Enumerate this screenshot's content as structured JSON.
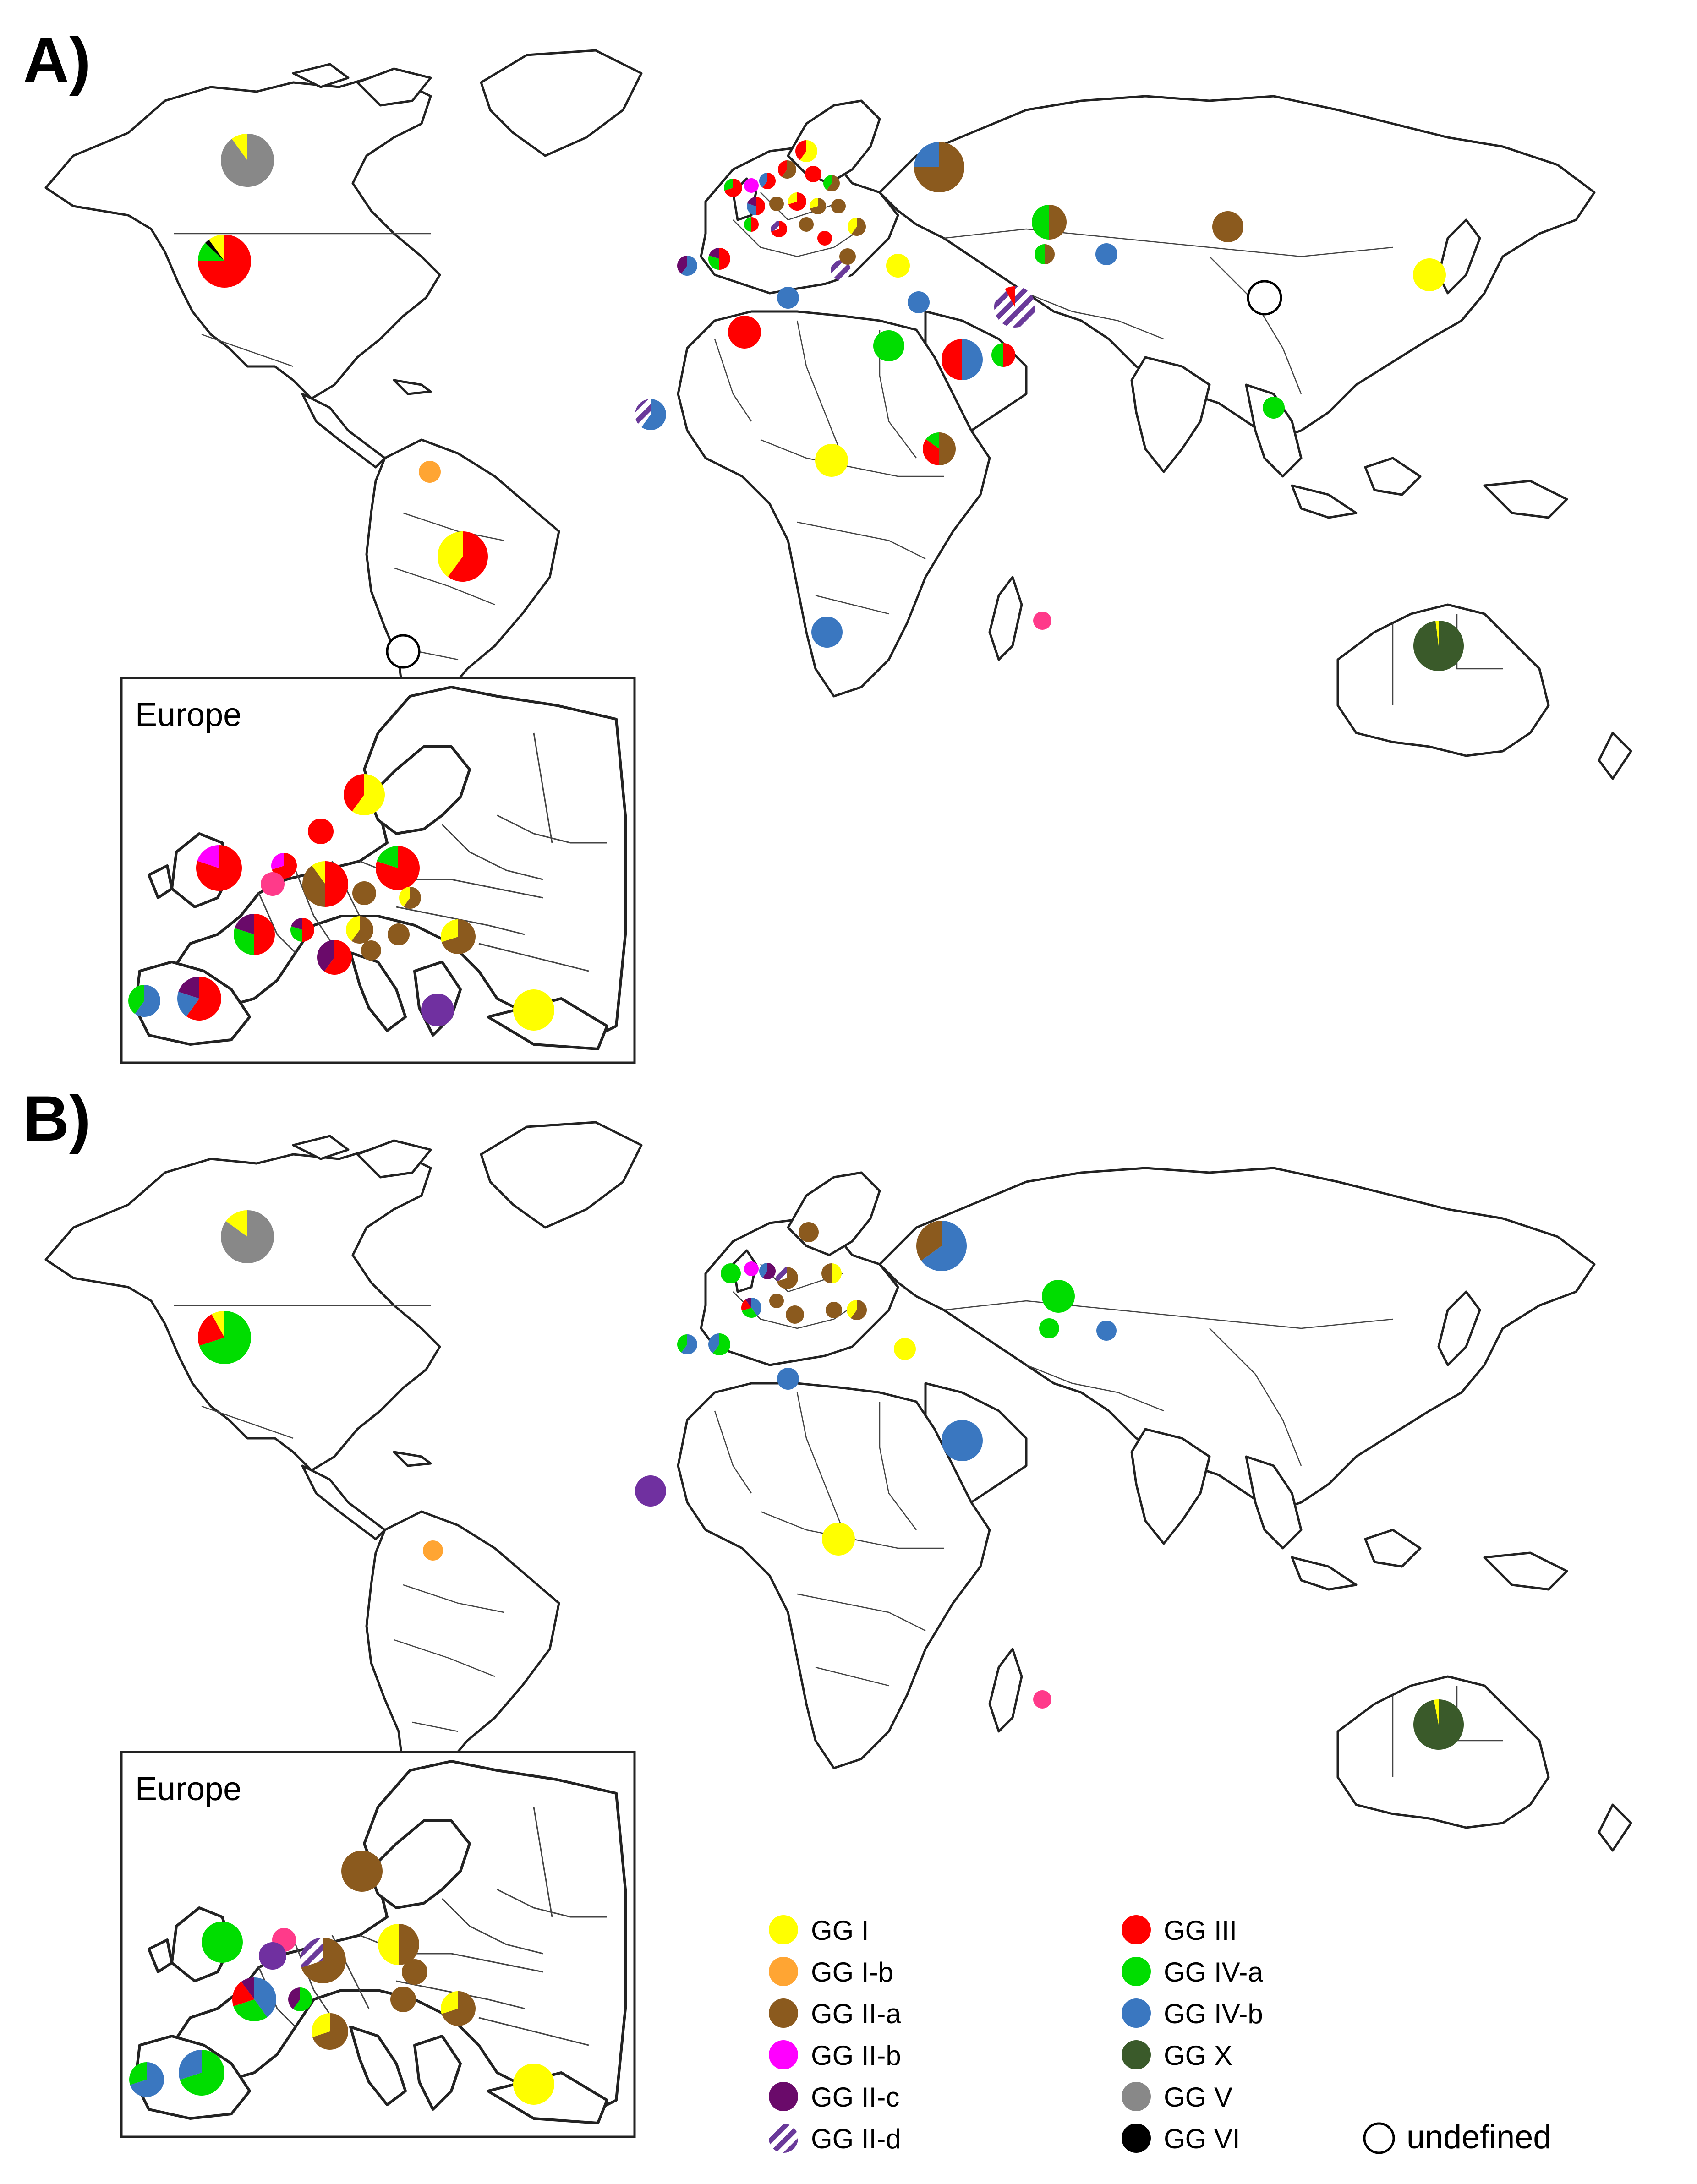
{
  "figure": {
    "panels": [
      {
        "id": "A",
        "label": "A)",
        "inset_title": "Europe"
      },
      {
        "id": "B",
        "label": "B)",
        "inset_title": "Europe"
      }
    ]
  },
  "colors": {
    "GG_I": "#ffff00",
    "GG_Ib": "#ffa533",
    "GG_IIa": "#8b5a1e",
    "GG_IIb": "#ff00ff",
    "GG_IIc": "#6a0a6a",
    "GG_IId": "#6a3a9a",
    "GG_III": "#ff0000",
    "GG_IVa": "#00dd00",
    "GG_IVb": "#3a77c0",
    "GG_X": "#3a5a2a",
    "GG_V": "#888888",
    "GG_VI": "#000000",
    "undefined": "#ffffff",
    "pink_marker": "#ff3a8a",
    "purple_marker": "#7030a0",
    "olive": "#8b6a10",
    "ocean": "#ffffff",
    "coast": "#222222"
  },
  "legend": {
    "items": [
      {
        "label": "GG I",
        "color_key": "GG_I"
      },
      {
        "label": "GG I-b",
        "color_key": "GG_Ib"
      },
      {
        "label": "GG II-a",
        "color_key": "GG_IIa"
      },
      {
        "label": "GG II-b",
        "color_key": "GG_IIb"
      },
      {
        "label": "GG II-c",
        "color_key": "GG_IIc"
      },
      {
        "label": "GG II-d",
        "color_key": "GG_IId",
        "hatched": true
      },
      {
        "label": "GG III",
        "color_key": "GG_III"
      },
      {
        "label": "GG IV-a",
        "color_key": "GG_IVa"
      },
      {
        "label": "GG IV-b",
        "color_key": "GG_IVb"
      },
      {
        "label": "GG X",
        "color_key": "GG_X"
      },
      {
        "label": "GG V",
        "color_key": "GG_V"
      },
      {
        "label": "GG VI",
        "color_key": "GG_VI"
      },
      {
        "label": "undefined",
        "color_key": "undefined",
        "outline": true
      }
    ]
  },
  "map_markers": {
    "A": [
      {
        "region": "Canada",
        "slices": [
          [
            "GG_V",
            0.9
          ],
          [
            "GG_I",
            0.1
          ]
        ]
      },
      {
        "region": "USA",
        "slices": [
          [
            "GG_III",
            0.75
          ],
          [
            "GG_IVa",
            0.12
          ],
          [
            "GG_VI",
            0.03
          ],
          [
            "GG_I",
            0.1
          ]
        ]
      },
      {
        "region": "French Guiana",
        "slices": [
          [
            "GG_Ib",
            1
          ]
        ]
      },
      {
        "region": "Brazil",
        "slices": [
          [
            "GG_III",
            0.6
          ],
          [
            "GG_I",
            0.4
          ]
        ]
      },
      {
        "region": "Argentina",
        "slices": [
          [
            "undefined",
            1
          ]
        ]
      },
      {
        "region": "Russia",
        "slices": [
          [
            "GG_IIa",
            0.75
          ],
          [
            "GG_IVb",
            0.25
          ]
        ]
      },
      {
        "region": "Kazakhstan",
        "slices": [
          [
            "GG_IIa",
            0.5
          ],
          [
            "GG_IVa",
            0.5
          ]
        ]
      },
      {
        "region": "Mongolia",
        "slices": [
          [
            "GG_IIa",
            1
          ]
        ]
      },
      {
        "region": "Uzbekistan",
        "slices": [
          [
            "GG_IIa",
            0.5
          ],
          [
            "GG_IVa",
            0.5
          ]
        ]
      },
      {
        "region": "Kyrgyzstan",
        "slices": [
          [
            "GG_IVb",
            1
          ]
        ]
      },
      {
        "region": "China",
        "slices": [
          [
            "undefined",
            1
          ]
        ]
      },
      {
        "region": "Japan",
        "slices": [
          [
            "GG_I",
            1
          ]
        ]
      },
      {
        "region": "Iran",
        "slices": [
          [
            "GG_IId",
            0.92
          ],
          [
            "GG_III",
            0.08
          ]
        ]
      },
      {
        "region": "Turkey",
        "slices": [
          [
            "GG_I",
            1
          ]
        ]
      },
      {
        "region": "Greece",
        "slices": [
          [
            "GG_IId",
            1
          ]
        ]
      },
      {
        "region": "Cyprus",
        "slices": [
          [
            "GG_IVb",
            1
          ]
        ]
      },
      {
        "region": "Tunisia",
        "slices": [
          [
            "GG_IVb",
            1
          ]
        ]
      },
      {
        "region": "Algeria",
        "slices": [
          [
            "GG_III",
            1
          ]
        ]
      },
      {
        "region": "Egypt",
        "slices": [
          [
            "GG_IVa",
            1
          ]
        ]
      },
      {
        "region": "Saudi Arabia",
        "slices": [
          [
            "GG_IVb",
            0.5
          ],
          [
            "GG_III",
            0.5
          ]
        ]
      },
      {
        "region": "UAE",
        "slices": [
          [
            "GG_III",
            0.5
          ],
          [
            "GG_IVa",
            0.5
          ]
        ]
      },
      {
        "region": "Senegal",
        "slices": [
          [
            "GG_IVb",
            0.6
          ],
          [
            "GG_IId",
            0.4
          ]
        ]
      },
      {
        "region": "Nigeria",
        "slices": [
          [
            "GG_I",
            1
          ]
        ]
      },
      {
        "region": "Ethiopia",
        "slices": [
          [
            "GG_IIa",
            0.5
          ],
          [
            "GG_III",
            0.35
          ],
          [
            "GG_IVa",
            0.15
          ]
        ]
      },
      {
        "region": "Vietnam",
        "slices": [
          [
            "GG_IVa",
            1
          ]
        ]
      },
      {
        "region": "Namibia",
        "slices": [
          [
            "GG_IVb",
            1
          ]
        ]
      },
      {
        "region": "Reunion",
        "slices": [
          [
            "pink_marker",
            1
          ]
        ]
      },
      {
        "region": "Australia",
        "slices": [
          [
            "GG_X",
            0.98
          ],
          [
            "GG_I",
            0.02
          ]
        ]
      }
    ],
    "B": [
      {
        "region": "Canada",
        "slices": [
          [
            "GG_V",
            0.85
          ],
          [
            "GG_I",
            0.15
          ]
        ]
      },
      {
        "region": "USA",
        "slices": [
          [
            "GG_IVa",
            0.7
          ],
          [
            "GG_III",
            0.22
          ],
          [
            "GG_I",
            0.08
          ]
        ]
      },
      {
        "region": "French Guiana",
        "slices": [
          [
            "GG_Ib",
            1
          ]
        ]
      },
      {
        "region": "Russia",
        "slices": [
          [
            "GG_IVb",
            0.65
          ],
          [
            "GG_IIa",
            0.35
          ]
        ]
      },
      {
        "region": "Kazakhstan",
        "slices": [
          [
            "GG_IVa",
            1
          ]
        ]
      },
      {
        "region": "Uzbekistan",
        "slices": [
          [
            "GG_IVa",
            1
          ]
        ]
      },
      {
        "region": "Kyrgyzstan",
        "slices": [
          [
            "GG_IVb",
            1
          ]
        ]
      },
      {
        "region": "Turkey",
        "slices": [
          [
            "GG_I",
            1
          ]
        ]
      },
      {
        "region": "Tunisia",
        "slices": [
          [
            "GG_IVb",
            1
          ]
        ]
      },
      {
        "region": "Saudi Arabia",
        "slices": [
          [
            "GG_IVb",
            1
          ]
        ]
      },
      {
        "region": "Senegal",
        "slices": [
          [
            "purple_marker",
            1
          ]
        ]
      },
      {
        "region": "Nigeria",
        "slices": [
          [
            "GG_I",
            1
          ]
        ]
      },
      {
        "region": "Reunion",
        "slices": [
          [
            "pink_marker",
            1
          ]
        ]
      },
      {
        "region": "Australia",
        "slices": [
          [
            "GG_X",
            0.97
          ],
          [
            "GG_I",
            0.03
          ]
        ]
      }
    ]
  }
}
